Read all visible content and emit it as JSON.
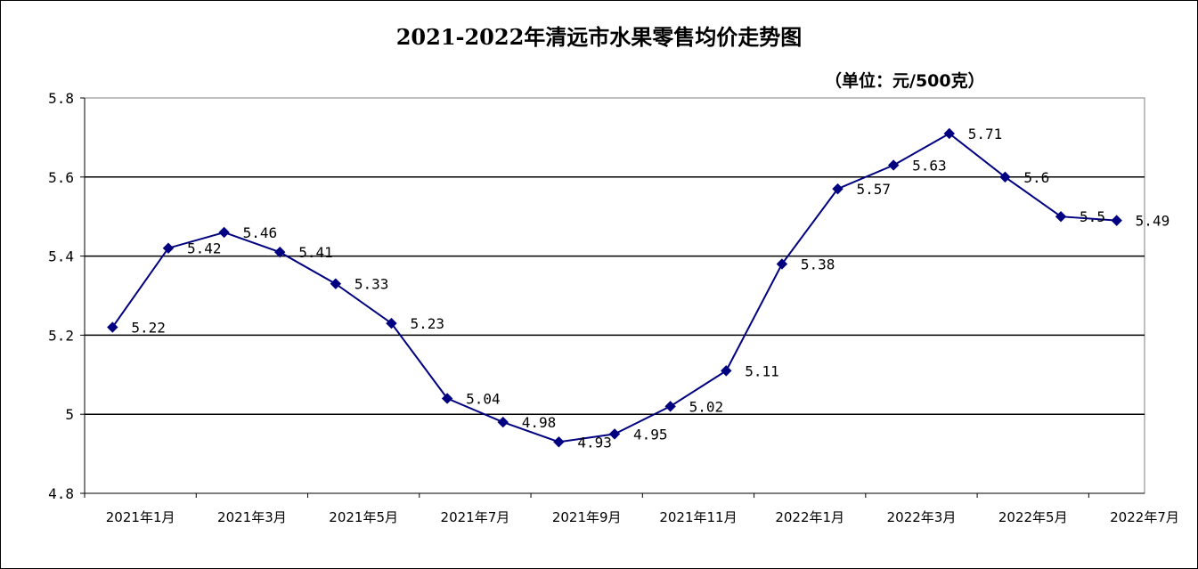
{
  "chart_data": {
    "type": "line",
    "title": "2021-2022年清远市水果零售均价走势图",
    "unit": "（单位：元/500克）",
    "xlabel": "",
    "ylabel": "",
    "ylim": [
      4.8,
      5.8
    ],
    "yticks": [
      "4.8",
      "5",
      "5.2",
      "5.4",
      "5.6",
      "5.8"
    ],
    "grid": true,
    "legend": "none",
    "line_color": "#000080",
    "x": [
      "2021年1月",
      "2021年2月",
      "2021年3月",
      "2021年4月",
      "2021年5月",
      "2021年6月",
      "2021年7月",
      "2021年8月",
      "2021年9月",
      "2021年10月",
      "2021年11月",
      "2021年12月",
      "2022年1月",
      "2022年2月",
      "2022年3月",
      "2022年4月",
      "2022年5月",
      "2022年6月",
      "2022年7月"
    ],
    "x_tick_labels": [
      "2021年1月",
      "2021年3月",
      "2021年5月",
      "2021年7月",
      "2021年9月",
      "2021年11月",
      "2022年1月",
      "2022年3月",
      "2022年5月",
      "2022年7月"
    ],
    "values": [
      5.22,
      5.42,
      5.46,
      5.41,
      5.33,
      5.23,
      5.04,
      4.98,
      4.93,
      4.95,
      5.02,
      5.11,
      5.38,
      5.57,
      5.63,
      5.71,
      5.6,
      5.5,
      5.49
    ],
    "data_labels": [
      "5.22",
      "5.42",
      "5.46",
      "5.41",
      "5.33",
      "5.23",
      "5.04",
      "4.98",
      "4.93",
      "4.95",
      "5.02",
      "5.11",
      "5.38",
      "5.57",
      "5.63",
      "5.71",
      "5.6",
      "5.5",
      "5.49"
    ]
  }
}
